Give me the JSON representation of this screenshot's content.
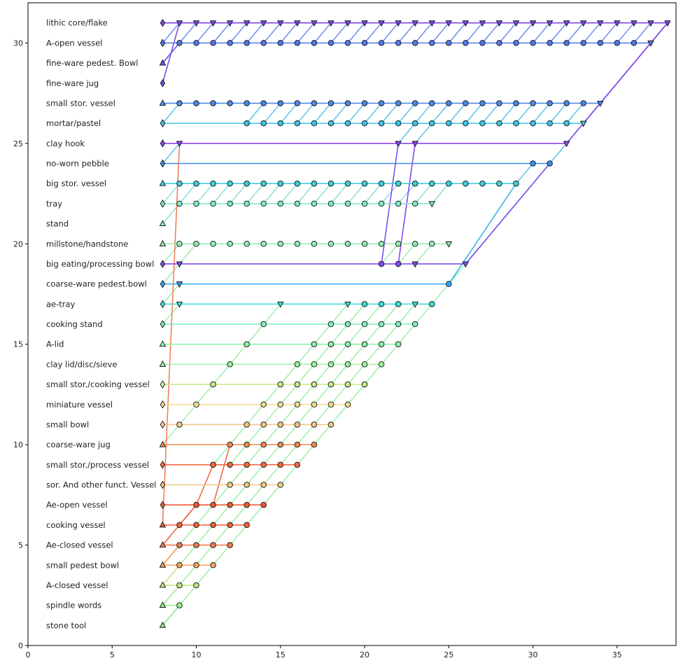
{
  "chart_data": {
    "type": "line",
    "title": "",
    "xlabel": "",
    "ylabel": "",
    "xlim": [
      0,
      38.5
    ],
    "ylim": [
      0,
      32
    ],
    "x_ticks": [
      0,
      5,
      10,
      15,
      20,
      25,
      30,
      35
    ],
    "y_ticks": [
      0,
      5,
      10,
      15,
      20,
      25,
      30
    ],
    "grid": false,
    "categories": [
      {
        "y": 31,
        "label": "lithic core/flake"
      },
      {
        "y": 30,
        "label": "A-open vessel"
      },
      {
        "y": 29,
        "label": "fine-ware pedest. Bowl"
      },
      {
        "y": 28,
        "label": "fine-ware jug"
      },
      {
        "y": 27,
        "label": "small stor. vessel"
      },
      {
        "y": 26,
        "label": "mortar/pastel"
      },
      {
        "y": 25,
        "label": "clay hook"
      },
      {
        "y": 24,
        "label": "no-worn pebble"
      },
      {
        "y": 23,
        "label": "big stor. vessel"
      },
      {
        "y": 22,
        "label": "tray"
      },
      {
        "y": 21,
        "label": "stand"
      },
      {
        "y": 20,
        "label": "millstone/handstone"
      },
      {
        "y": 19,
        "label": "big eating/processing bowl"
      },
      {
        "y": 18,
        "label": "coarse-ware pedest.bowl"
      },
      {
        "y": 17,
        "label": "ae-tray"
      },
      {
        "y": 16,
        "label": "cooking stand"
      },
      {
        "y": 15,
        "label": "A-lid"
      },
      {
        "y": 14,
        "label": "clay lid/disc/sieve"
      },
      {
        "y": 13,
        "label": "small stor./cooking vessel"
      },
      {
        "y": 12,
        "label": "miniature vessel"
      },
      {
        "y": 11,
        "label": "small bowl"
      },
      {
        "y": 10,
        "label": "coarse-ware jug"
      },
      {
        "y": 9,
        "label": "small stor./process vessel"
      },
      {
        "y": 8,
        "label": "sor. And other funct. Vessel"
      },
      {
        "y": 7,
        "label": "Ae-open vessel"
      },
      {
        "y": 6,
        "label": "cooking vessel"
      },
      {
        "y": 5,
        "label": "Ae-closed vessel"
      },
      {
        "y": 4,
        "label": "small pedest bowl"
      },
      {
        "y": 3,
        "label": "A-closed vessel"
      },
      {
        "y": 2,
        "label": "spindle words"
      },
      {
        "y": 1,
        "label": "stone tool"
      }
    ],
    "rows": [
      {
        "y": 1,
        "color": "#7fe87a",
        "start": "up",
        "points": [
          8
        ]
      },
      {
        "y": 2,
        "color": "#98ef8a",
        "start": "up",
        "points": [
          8,
          9
        ]
      },
      {
        "y": 3,
        "color": "#c2e882",
        "start": "up",
        "points": [
          8,
          9,
          10
        ]
      },
      {
        "y": 4,
        "color": "#f5a25f",
        "start": "up",
        "points": [
          8,
          9,
          10,
          11
        ]
      },
      {
        "y": 5,
        "color": "#f07a4e",
        "start": "up",
        "points": [
          8,
          9,
          10,
          11,
          12
        ]
      },
      {
        "y": 6,
        "color": "#f25f3a",
        "start": "up",
        "points": [
          8,
          9,
          10,
          11,
          12,
          13
        ]
      },
      {
        "y": 7,
        "color": "#ef5a36",
        "start": "diamond",
        "points": [
          8,
          10,
          11,
          12,
          13,
          14
        ]
      },
      {
        "y": 8,
        "color": "#f0c882",
        "start": "diamond",
        "points": [
          8,
          12,
          13,
          14,
          15
        ]
      },
      {
        "y": 9,
        "color": "#f46a44",
        "start": "diamond",
        "points": [
          8,
          11,
          12,
          13,
          14,
          15,
          16
        ]
      },
      {
        "y": 10,
        "color": "#f38a4e",
        "start": "up",
        "points": [
          8,
          12,
          13,
          14,
          15,
          16,
          17
        ]
      },
      {
        "y": 11,
        "color": "#f2c88a",
        "start": "diamond",
        "points": [
          8,
          9,
          13,
          14,
          15,
          16,
          17,
          18
        ]
      },
      {
        "y": 12,
        "color": "#f3dc8e",
        "start": "diamond",
        "points": [
          8,
          10,
          14,
          15,
          16,
          17,
          18,
          19
        ]
      },
      {
        "y": 13,
        "color": "#c9ec8f",
        "start": "diamond",
        "points": [
          8,
          11,
          15,
          16,
          17,
          18,
          19,
          20
        ]
      },
      {
        "y": 14,
        "color": "#9ef0a0",
        "start": "up",
        "points": [
          8,
          12,
          16,
          17,
          18,
          19,
          20,
          21
        ]
      },
      {
        "y": 15,
        "color": "#8ef2ab",
        "start": "up",
        "points": [
          8,
          13,
          17,
          18,
          19,
          20,
          21,
          22
        ]
      },
      {
        "y": 16,
        "color": "#7eeec0",
        "start": "diamond",
        "points": [
          8,
          14,
          18,
          19,
          20,
          21,
          22,
          23
        ]
      },
      {
        "y": 17,
        "color": "#3fdcd8",
        "start": "diamond",
        "points": [
          8,
          9,
          15,
          19,
          20,
          21,
          22,
          23,
          24
        ],
        "down_at": [
          9,
          15,
          19,
          23
        ]
      },
      {
        "y": 18,
        "color": "#2ea8ee",
        "start": "diamond",
        "points": [
          8,
          9,
          25
        ],
        "down_at": [
          9
        ]
      },
      {
        "y": 19,
        "color": "#7d4ee8",
        "start": "diamond",
        "points": [
          8,
          9,
          21,
          22,
          23,
          26
        ],
        "down_at": [
          9,
          23,
          26
        ]
      },
      {
        "y": 20,
        "color": "#92ecb2",
        "start": "up",
        "points": [
          8,
          9,
          10,
          11,
          12,
          13,
          14,
          15,
          16,
          17,
          18,
          19,
          20,
          21,
          22,
          23,
          24,
          25
        ],
        "down_at": [
          25
        ]
      },
      {
        "y": 21,
        "color": "#8ae8c0",
        "start": "up",
        "points": [
          8
        ]
      },
      {
        "y": 22,
        "color": "#7ee8cc",
        "start": "diamond",
        "points": [
          8,
          9,
          10,
          11,
          12,
          13,
          14,
          15,
          16,
          17,
          18,
          19,
          20,
          21,
          22,
          23,
          24
        ],
        "down_at": [
          24
        ]
      },
      {
        "y": 23,
        "color": "#3ed0de",
        "start": "up",
        "points": [
          8,
          9,
          10,
          11,
          12,
          13,
          14,
          15,
          16,
          17,
          18,
          19,
          20,
          21,
          22,
          23,
          24,
          25,
          26,
          27,
          28,
          29
        ]
      },
      {
        "y": 24,
        "color": "#3b8de8",
        "start": "diamond",
        "points": [
          8,
          30,
          31
        ]
      },
      {
        "y": 25,
        "color": "#9045ec",
        "start": "diamond",
        "points": [
          8,
          9,
          22,
          23,
          32
        ],
        "down_at": [
          9,
          22,
          23,
          32
        ]
      },
      {
        "y": 26,
        "color": "#3cc4e4",
        "start": "diamond",
        "points": [
          8,
          13,
          14,
          15,
          16,
          17,
          18,
          19,
          20,
          21,
          22,
          23,
          24,
          25,
          26,
          27,
          28,
          29,
          30,
          31,
          32,
          33
        ],
        "down_at": [
          33
        ]
      },
      {
        "y": 27,
        "color": "#4a8ae8",
        "start": "up",
        "points": [
          8,
          9,
          10,
          11,
          12,
          13,
          14,
          15,
          16,
          17,
          18,
          19,
          20,
          21,
          22,
          23,
          24,
          25,
          26,
          27,
          28,
          29,
          30,
          31,
          32,
          33,
          34
        ],
        "down_at": [
          34
        ]
      },
      {
        "y": 28,
        "color": "#6a52e6",
        "start": "diamond",
        "points": [
          8
        ]
      },
      {
        "y": 29,
        "color": "#5a5fe8",
        "start": "up",
        "points": [
          8
        ]
      },
      {
        "y": 30,
        "color": "#5277e8",
        "start": "diamond",
        "points": [
          8,
          9,
          10,
          11,
          12,
          13,
          14,
          15,
          16,
          17,
          18,
          19,
          20,
          21,
          22,
          23,
          24,
          25,
          26,
          27,
          28,
          29,
          30,
          31,
          32,
          33,
          34,
          35,
          36,
          37
        ],
        "down_at": [
          37
        ]
      },
      {
        "y": 31,
        "color": "#8044e8",
        "start": "diamond",
        "points": [
          8,
          9,
          10,
          11,
          12,
          13,
          14,
          15,
          16,
          17,
          18,
          19,
          20,
          21,
          22,
          23,
          24,
          25,
          26,
          27,
          28,
          29,
          30,
          31,
          32,
          33,
          34,
          35,
          36,
          37,
          38
        ],
        "down_at": [
          9,
          10,
          11,
          12,
          13,
          14,
          15,
          16,
          17,
          18,
          19,
          20,
          21,
          22,
          23,
          24,
          25,
          26,
          27,
          28,
          29,
          30,
          31,
          32,
          33,
          34,
          35,
          36,
          37,
          38
        ]
      }
    ],
    "links": [
      {
        "from": [
          8,
          1
        ],
        "to": [
          9,
          2
        ],
        "color": "#8ee89a"
      },
      {
        "from": [
          8,
          2
        ],
        "to": [
          9,
          3
        ],
        "color": "#a8e890"
      },
      {
        "from": [
          8,
          3
        ],
        "to": [
          9,
          4
        ],
        "color": "#e6d68a"
      },
      {
        "from": [
          8,
          4
        ],
        "to": [
          9,
          5
        ],
        "color": "#f29a58"
      },
      {
        "from": [
          8,
          5
        ],
        "to": [
          9,
          6
        ],
        "color": "#f06a44"
      },
      {
        "from": [
          9,
          6
        ],
        "to": [
          10,
          7
        ],
        "color": "#ef5a36"
      },
      {
        "from": [
          10,
          7
        ],
        "to": [
          11,
          9
        ],
        "color": "#f06a44"
      },
      {
        "from": [
          11,
          7
        ],
        "to": [
          12,
          10
        ],
        "color": "#f06a44"
      },
      {
        "from": [
          8,
          6
        ],
        "to": [
          9,
          25
        ],
        "color": "#f2805a"
      },
      {
        "from": [
          21,
          19
        ],
        "to": [
          22,
          25
        ],
        "color": "#7d4ee8"
      },
      {
        "from": [
          22,
          19
        ],
        "to": [
          23,
          25
        ],
        "color": "#8548e8"
      },
      {
        "from": [
          25,
          18
        ],
        "to": [
          29,
          23
        ],
        "color": "#3bb6e8"
      },
      {
        "from": [
          26,
          19
        ],
        "to": [
          31,
          24
        ],
        "color": "#6a52e6"
      },
      {
        "from": [
          8,
          28
        ],
        "to": [
          9,
          31
        ],
        "color": "#7a4ee8"
      },
      {
        "from": [
          8,
          29
        ],
        "to": [
          9,
          30
        ],
        "color": "#6a5ae8"
      },
      {
        "from": [
          33,
          26
        ],
        "to": [
          38,
          31
        ],
        "color": "#8044e8"
      },
      {
        "from": [
          32,
          25
        ],
        "to": [
          37,
          30
        ],
        "color": "#7e48e8"
      }
    ],
    "diagonal_bundles": [
      {
        "y_from": 1,
        "y_to": 20,
        "dx": 1,
        "color": "#8aee9e"
      },
      {
        "y_from": 20,
        "y_to": 23,
        "dx": 1,
        "color": "#7ad8d6"
      },
      {
        "y_from": 23,
        "y_to": 27,
        "dx": 1,
        "color": "#44b8e8"
      },
      {
        "y_from": 27,
        "y_to": 30,
        "dx": 1,
        "color": "#4a90e8"
      },
      {
        "y_from": 30,
        "y_to": 31,
        "dx": 1,
        "color": "#5a78e8"
      }
    ]
  }
}
